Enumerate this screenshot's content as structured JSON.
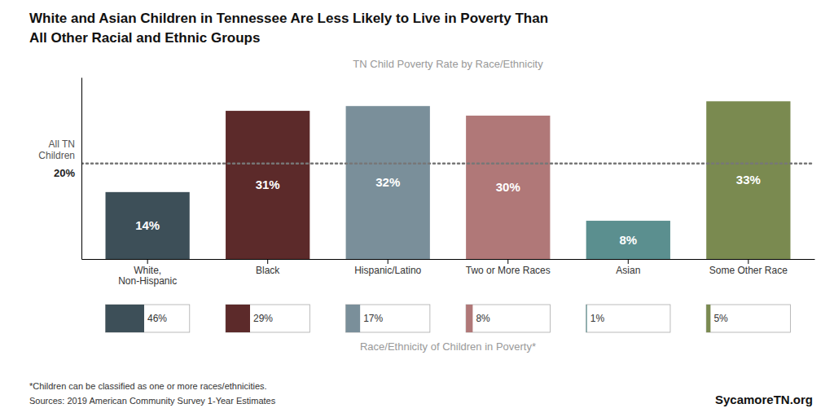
{
  "chart_data": [
    {
      "type": "bar",
      "title": "White and Asian Children in Tennessee Are Less Likely to Live in Poverty Than\nAll Other Racial and Ethnic Groups",
      "subtitle": "TN Child Poverty Rate by Race/Ethnicity",
      "categories": [
        "White,\nNon-Hispanic",
        "Black",
        "Hispanic/Latino",
        "Two or More Races",
        "Asian",
        "Some Other Race"
      ],
      "values": [
        14,
        31,
        32,
        30,
        8,
        33
      ],
      "value_labels": [
        "14%",
        "31%",
        "32%",
        "30%",
        "8%",
        "33%"
      ],
      "colors": [
        "#3d4f58",
        "#5c2a2a",
        "#7a8f9a",
        "#b07878",
        "#5b8f8f",
        "#7a8a50"
      ],
      "ylim": [
        0,
        38
      ],
      "yticks": [],
      "grid": false,
      "data_labels": true,
      "tick_labels": "x",
      "reference_line": {
        "value": 20,
        "label": "20%",
        "text": "All TN\nChildren"
      },
      "footnote": "*Children can be classified as one or more races/ethnicities.",
      "source": "Sources: 2019 American Community Survey 1-Year Estimates",
      "watermark": "SycamoreTN.org"
    },
    {
      "type": "bar",
      "orientation": "horizontal",
      "xlabel": "Race/Ethnicity of Children in Poverty*",
      "values": [
        46,
        29,
        17,
        8,
        1,
        5
      ],
      "value_labels": [
        "46%",
        "29%",
        "17%",
        "8%",
        "1%",
        "5%"
      ],
      "colors": [
        "#3d4f58",
        "#5c2a2a",
        "#7a8f9a",
        "#b07878",
        "#5b8f8f",
        "#7a8a50"
      ],
      "xlim": [
        0,
        100
      ],
      "data_labels": true,
      "tick_labels": false
    }
  ]
}
